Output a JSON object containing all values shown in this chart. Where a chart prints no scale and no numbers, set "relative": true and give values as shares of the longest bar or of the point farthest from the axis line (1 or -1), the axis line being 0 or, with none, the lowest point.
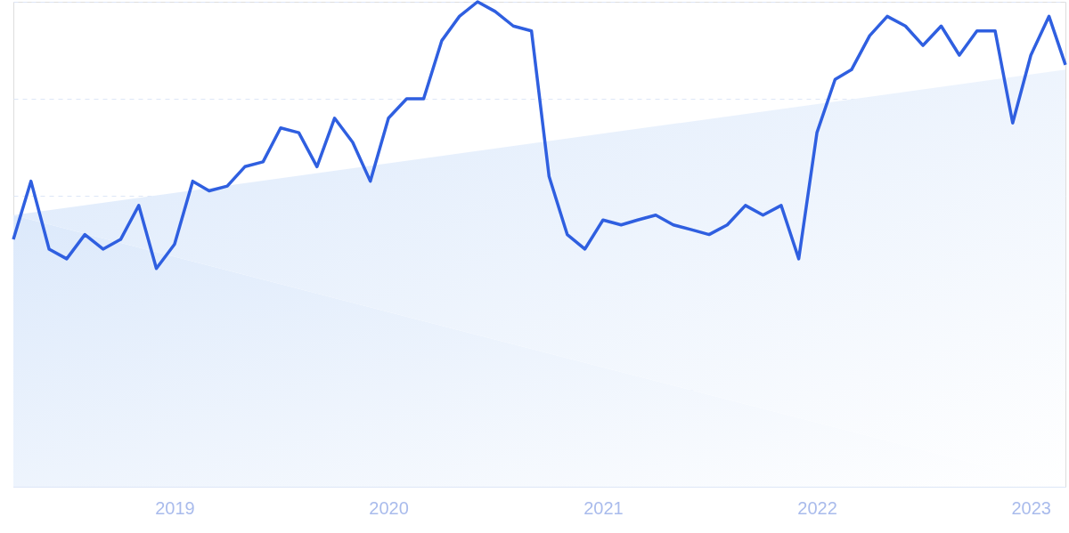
{
  "chart_data": {
    "type": "line",
    "relative": true,
    "x": [
      "2018-04",
      "2018-05",
      "2018-06",
      "2018-07",
      "2018-08",
      "2018-09",
      "2018-10",
      "2018-11",
      "2018-12",
      "2019-01",
      "2019-02",
      "2019-03",
      "2019-04",
      "2019-05",
      "2019-06",
      "2019-07",
      "2019-08",
      "2019-09",
      "2019-10",
      "2019-11",
      "2019-12",
      "2020-01",
      "2020-02",
      "2020-03",
      "2020-04",
      "2020-05",
      "2020-06",
      "2020-07",
      "2020-08",
      "2020-09",
      "2020-10",
      "2020-11",
      "2020-12",
      "2021-01",
      "2021-02",
      "2021-03",
      "2021-04",
      "2021-05",
      "2021-06",
      "2021-07",
      "2021-08",
      "2021-09",
      "2021-10",
      "2021-11",
      "2021-12",
      "2022-01",
      "2022-02",
      "2022-03",
      "2022-04",
      "2022-05",
      "2022-06",
      "2022-07",
      "2022-08",
      "2022-09",
      "2022-10",
      "2022-11",
      "2022-12",
      "2023-01",
      "2023-02",
      "2023-03"
    ],
    "series": [
      {
        "type": "area",
        "color": "#dce9fb",
        "x": [
          "2018-04",
          "2023-03"
        ],
        "values": [
          0.56,
          0.86
        ]
      },
      {
        "color": "#2f5fe0",
        "values": [
          0.51,
          0.63,
          0.49,
          0.47,
          0.52,
          0.49,
          0.51,
          0.58,
          0.45,
          0.5,
          0.63,
          0.61,
          0.62,
          0.66,
          0.67,
          0.74,
          0.73,
          0.66,
          0.76,
          0.71,
          0.63,
          0.76,
          0.8,
          0.8,
          0.92,
          0.97,
          1.0,
          0.98,
          0.95,
          0.94,
          0.64,
          0.52,
          0.49,
          0.55,
          0.54,
          0.55,
          0.56,
          0.54,
          0.53,
          0.52,
          0.54,
          0.58,
          0.56,
          0.58,
          0.47,
          0.73,
          0.84,
          0.86,
          0.93,
          0.97,
          0.95,
          0.91,
          0.95,
          0.89,
          0.94,
          0.94,
          0.75,
          0.89,
          0.97,
          0.87
        ]
      }
    ],
    "xlim": [
      "2018-04",
      "2023-03"
    ],
    "xticks": [
      {
        "value": "2019",
        "label": "2019"
      },
      {
        "value": "2020",
        "label": "2020"
      },
      {
        "value": "2021",
        "label": "2021"
      },
      {
        "value": "2022",
        "label": "2022"
      },
      {
        "value": "2023",
        "label": "2023"
      }
    ],
    "grid": "y",
    "line_style": "solid",
    "marker": "none"
  }
}
